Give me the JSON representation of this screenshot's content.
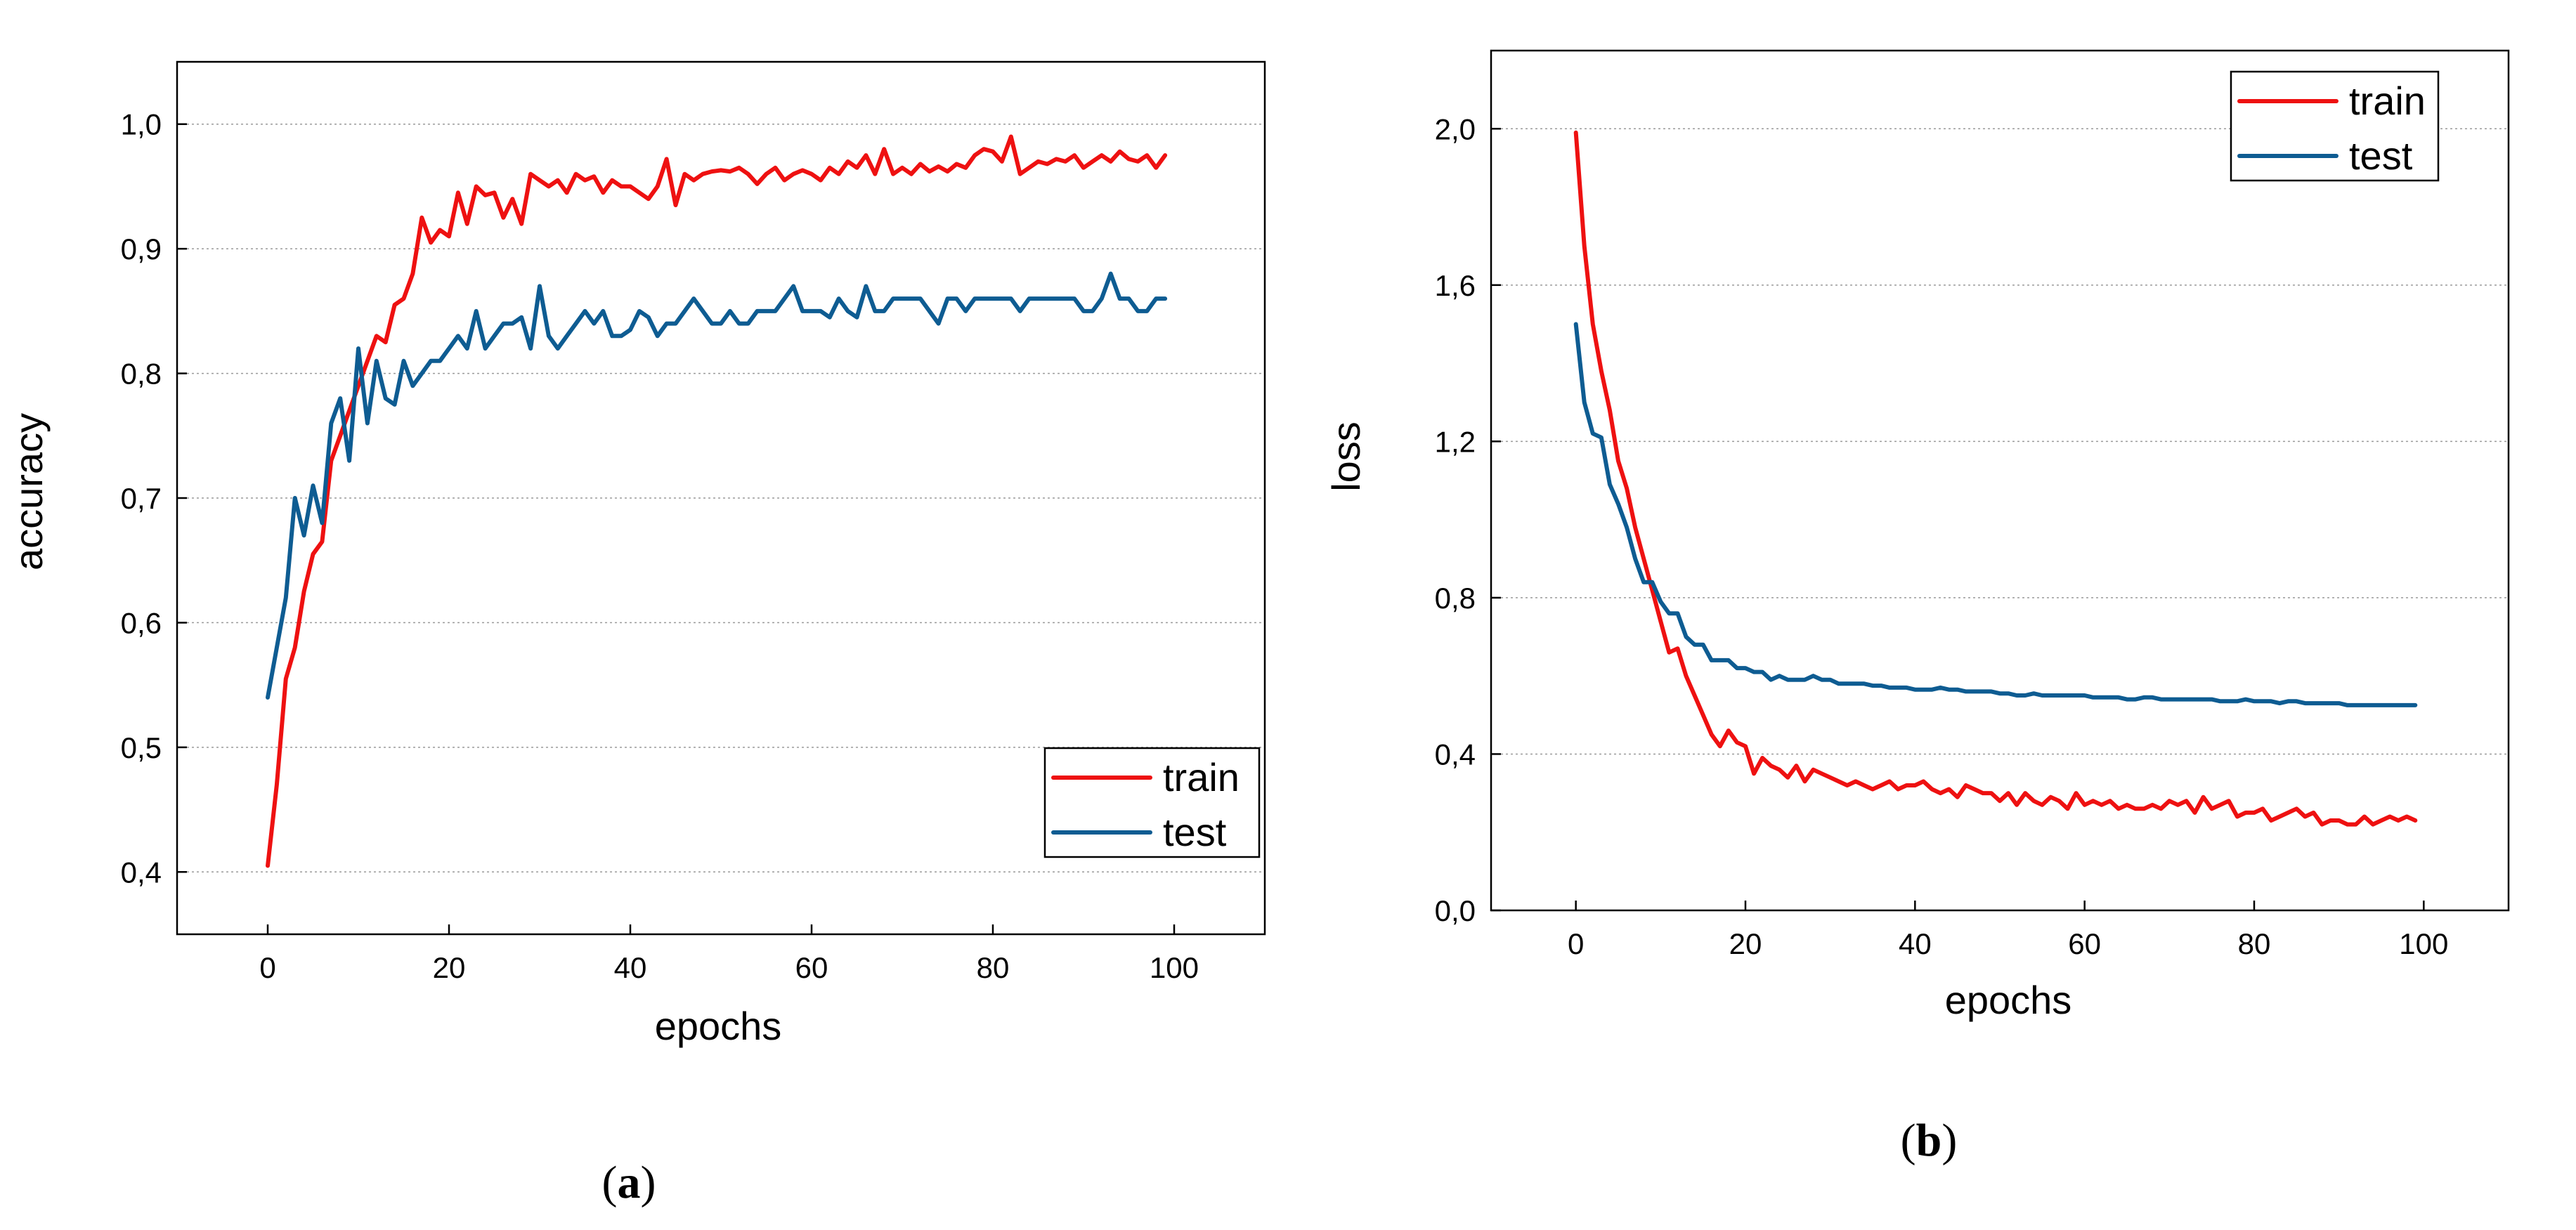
{
  "colors": {
    "train": "#ee1111",
    "test": "#0e5c92"
  },
  "chart_data": [
    {
      "type": "line",
      "caption": "a",
      "xlabel": "epochs",
      "ylabel": "accuracy",
      "xlim": [
        -10,
        110
      ],
      "ylim": [
        0.35,
        1.05
      ],
      "xticks": [
        0,
        20,
        40,
        60,
        80,
        100
      ],
      "xtick_labels": [
        "0",
        "20",
        "40",
        "60",
        "80",
        "100"
      ],
      "yticks": [
        0.4,
        0.5,
        0.6,
        0.7,
        0.8,
        0.9,
        1.0
      ],
      "ytick_labels": [
        "0,4",
        "0,5",
        "0,6",
        "0,7",
        "0,8",
        "0,9",
        "1,0"
      ],
      "grid": true,
      "legend_position": "bottom-right",
      "series": [
        {
          "name": "train",
          "color_key": "train",
          "x": [
            0,
            1,
            2,
            3,
            4,
            5,
            6,
            7,
            8,
            9,
            10,
            11,
            12,
            13,
            14,
            15,
            16,
            17,
            18,
            19,
            20,
            21,
            22,
            23,
            24,
            25,
            26,
            27,
            28,
            29,
            30,
            31,
            32,
            33,
            34,
            35,
            36,
            37,
            38,
            39,
            40,
            41,
            42,
            43,
            44,
            45,
            46,
            47,
            48,
            49,
            50,
            51,
            52,
            53,
            54,
            55,
            56,
            57,
            58,
            59,
            60,
            61,
            62,
            63,
            64,
            65,
            66,
            67,
            68,
            69,
            70,
            71,
            72,
            73,
            74,
            75,
            76,
            77,
            78,
            79,
            80,
            81,
            82,
            83,
            84,
            85,
            86,
            87,
            88,
            89,
            90,
            91,
            92,
            93,
            94,
            95,
            96,
            97,
            98,
            99
          ],
          "values": [
            0.405,
            0.47,
            0.555,
            0.58,
            0.625,
            0.655,
            0.665,
            0.73,
            0.75,
            0.77,
            0.79,
            0.81,
            0.83,
            0.825,
            0.855,
            0.86,
            0.88,
            0.925,
            0.905,
            0.915,
            0.91,
            0.945,
            0.92,
            0.95,
            0.943,
            0.945,
            0.925,
            0.94,
            0.92,
            0.96,
            0.955,
            0.95,
            0.955,
            0.945,
            0.96,
            0.955,
            0.958,
            0.945,
            0.955,
            0.95,
            0.95,
            0.945,
            0.94,
            0.95,
            0.972,
            0.935,
            0.96,
            0.955,
            0.96,
            0.962,
            0.963,
            0.962,
            0.965,
            0.96,
            0.952,
            0.96,
            0.965,
            0.955,
            0.96,
            0.963,
            0.96,
            0.955,
            0.965,
            0.96,
            0.97,
            0.965,
            0.975,
            0.96,
            0.98,
            0.96,
            0.965,
            0.96,
            0.968,
            0.962,
            0.966,
            0.962,
            0.968,
            0.965,
            0.975,
            0.98,
            0.978,
            0.97,
            0.99,
            0.96,
            0.965,
            0.97,
            0.968,
            0.972,
            0.97,
            0.975,
            0.965,
            0.97,
            0.975,
            0.97,
            0.978,
            0.972,
            0.97,
            0.975,
            0.965,
            0.975
          ]
        },
        {
          "name": "test",
          "color_key": "test",
          "x": [
            0,
            1,
            2,
            3,
            4,
            5,
            6,
            7,
            8,
            9,
            10,
            11,
            12,
            13,
            14,
            15,
            16,
            17,
            18,
            19,
            20,
            21,
            22,
            23,
            24,
            25,
            26,
            27,
            28,
            29,
            30,
            31,
            32,
            33,
            34,
            35,
            36,
            37,
            38,
            39,
            40,
            41,
            42,
            43,
            44,
            45,
            46,
            47,
            48,
            49,
            50,
            51,
            52,
            53,
            54,
            55,
            56,
            57,
            58,
            59,
            60,
            61,
            62,
            63,
            64,
            65,
            66,
            67,
            68,
            69,
            70,
            71,
            72,
            73,
            74,
            75,
            76,
            77,
            78,
            79,
            80,
            81,
            82,
            83,
            84,
            85,
            86,
            87,
            88,
            89,
            90,
            91,
            92,
            93,
            94,
            95,
            96,
            97,
            98,
            99
          ],
          "values": [
            0.54,
            0.58,
            0.62,
            0.7,
            0.67,
            0.71,
            0.68,
            0.76,
            0.78,
            0.73,
            0.82,
            0.76,
            0.81,
            0.78,
            0.775,
            0.81,
            0.79,
            0.8,
            0.81,
            0.81,
            0.82,
            0.83,
            0.82,
            0.85,
            0.82,
            0.83,
            0.84,
            0.84,
            0.845,
            0.82,
            0.87,
            0.83,
            0.82,
            0.83,
            0.84,
            0.85,
            0.84,
            0.85,
            0.83,
            0.83,
            0.835,
            0.85,
            0.845,
            0.83,
            0.84,
            0.84,
            0.85,
            0.86,
            0.85,
            0.84,
            0.84,
            0.85,
            0.84,
            0.84,
            0.85,
            0.85,
            0.85,
            0.86,
            0.87,
            0.85,
            0.85,
            0.85,
            0.845,
            0.86,
            0.85,
            0.845,
            0.87,
            0.85,
            0.85,
            0.86,
            0.86,
            0.86,
            0.86,
            0.85,
            0.84,
            0.86,
            0.86,
            0.85,
            0.86,
            0.86,
            0.86,
            0.86,
            0.86,
            0.85,
            0.86,
            0.86,
            0.86,
            0.86,
            0.86,
            0.86,
            0.85,
            0.85,
            0.86,
            0.88,
            0.86,
            0.86,
            0.85,
            0.85,
            0.86,
            0.86
          ]
        }
      ]
    },
    {
      "type": "line",
      "caption": "b",
      "xlabel": "epochs",
      "ylabel": "loss",
      "xlim": [
        -10,
        110
      ],
      "ylim": [
        0.0,
        2.2
      ],
      "xticks": [
        0,
        20,
        40,
        60,
        80,
        100
      ],
      "xtick_labels": [
        "0",
        "20",
        "40",
        "60",
        "80",
        "100"
      ],
      "yticks": [
        0.0,
        0.4,
        0.8,
        1.2,
        1.6,
        2.0
      ],
      "ytick_labels": [
        "0,0",
        "0,4",
        "0,8",
        "1,2",
        "1,6",
        "2,0"
      ],
      "grid": true,
      "legend_position": "top-right",
      "series": [
        {
          "name": "train",
          "color_key": "train",
          "x": [
            0,
            1,
            2,
            3,
            4,
            5,
            6,
            7,
            8,
            9,
            10,
            11,
            12,
            13,
            14,
            15,
            16,
            17,
            18,
            19,
            20,
            21,
            22,
            23,
            24,
            25,
            26,
            27,
            28,
            29,
            30,
            31,
            32,
            33,
            34,
            35,
            36,
            37,
            38,
            39,
            40,
            41,
            42,
            43,
            44,
            45,
            46,
            47,
            48,
            49,
            50,
            51,
            52,
            53,
            54,
            55,
            56,
            57,
            58,
            59,
            60,
            61,
            62,
            63,
            64,
            65,
            66,
            67,
            68,
            69,
            70,
            71,
            72,
            73,
            74,
            75,
            76,
            77,
            78,
            79,
            80,
            81,
            82,
            83,
            84,
            85,
            86,
            87,
            88,
            89,
            90,
            91,
            92,
            93,
            94,
            95,
            96,
            97,
            98,
            99
          ],
          "values": [
            1.99,
            1.7,
            1.5,
            1.38,
            1.28,
            1.15,
            1.08,
            0.98,
            0.9,
            0.82,
            0.74,
            0.66,
            0.67,
            0.6,
            0.55,
            0.5,
            0.45,
            0.42,
            0.46,
            0.43,
            0.42,
            0.35,
            0.39,
            0.37,
            0.36,
            0.34,
            0.37,
            0.33,
            0.36,
            0.35,
            0.34,
            0.33,
            0.32,
            0.33,
            0.32,
            0.31,
            0.32,
            0.33,
            0.31,
            0.32,
            0.32,
            0.33,
            0.31,
            0.3,
            0.31,
            0.29,
            0.32,
            0.31,
            0.3,
            0.3,
            0.28,
            0.3,
            0.27,
            0.3,
            0.28,
            0.27,
            0.29,
            0.28,
            0.26,
            0.3,
            0.27,
            0.28,
            0.27,
            0.28,
            0.26,
            0.27,
            0.26,
            0.26,
            0.27,
            0.26,
            0.28,
            0.27,
            0.28,
            0.25,
            0.29,
            0.26,
            0.27,
            0.28,
            0.24,
            0.25,
            0.25,
            0.26,
            0.23,
            0.24,
            0.25,
            0.26,
            0.24,
            0.25,
            0.22,
            0.23,
            0.23,
            0.22,
            0.22,
            0.24,
            0.22,
            0.23,
            0.24,
            0.23,
            0.24,
            0.23
          ]
        },
        {
          "name": "test",
          "color_key": "test",
          "x": [
            0,
            1,
            2,
            3,
            4,
            5,
            6,
            7,
            8,
            9,
            10,
            11,
            12,
            13,
            14,
            15,
            16,
            17,
            18,
            19,
            20,
            21,
            22,
            23,
            24,
            25,
            26,
            27,
            28,
            29,
            30,
            31,
            32,
            33,
            34,
            35,
            36,
            37,
            38,
            39,
            40,
            41,
            42,
            43,
            44,
            45,
            46,
            47,
            48,
            49,
            50,
            51,
            52,
            53,
            54,
            55,
            56,
            57,
            58,
            59,
            60,
            61,
            62,
            63,
            64,
            65,
            66,
            67,
            68,
            69,
            70,
            71,
            72,
            73,
            74,
            75,
            76,
            77,
            78,
            79,
            80,
            81,
            82,
            83,
            84,
            85,
            86,
            87,
            88,
            89,
            90,
            91,
            92,
            93,
            94,
            95,
            96,
            97,
            98,
            99
          ],
          "values": [
            1.5,
            1.3,
            1.22,
            1.21,
            1.09,
            1.04,
            0.98,
            0.9,
            0.84,
            0.84,
            0.79,
            0.76,
            0.76,
            0.7,
            0.68,
            0.68,
            0.64,
            0.64,
            0.64,
            0.62,
            0.62,
            0.61,
            0.61,
            0.59,
            0.6,
            0.59,
            0.59,
            0.59,
            0.6,
            0.59,
            0.59,
            0.58,
            0.58,
            0.58,
            0.58,
            0.575,
            0.575,
            0.57,
            0.57,
            0.57,
            0.565,
            0.565,
            0.565,
            0.57,
            0.565,
            0.565,
            0.56,
            0.56,
            0.56,
            0.56,
            0.555,
            0.555,
            0.55,
            0.55,
            0.555,
            0.55,
            0.55,
            0.55,
            0.55,
            0.55,
            0.55,
            0.545,
            0.545,
            0.545,
            0.545,
            0.54,
            0.54,
            0.545,
            0.545,
            0.54,
            0.54,
            0.54,
            0.54,
            0.54,
            0.54,
            0.54,
            0.535,
            0.535,
            0.535,
            0.54,
            0.535,
            0.535,
            0.535,
            0.53,
            0.535,
            0.535,
            0.53,
            0.53,
            0.53,
            0.53,
            0.53,
            0.525,
            0.525,
            0.525,
            0.525,
            0.525,
            0.525,
            0.525,
            0.525,
            0.525
          ]
        }
      ]
    }
  ]
}
